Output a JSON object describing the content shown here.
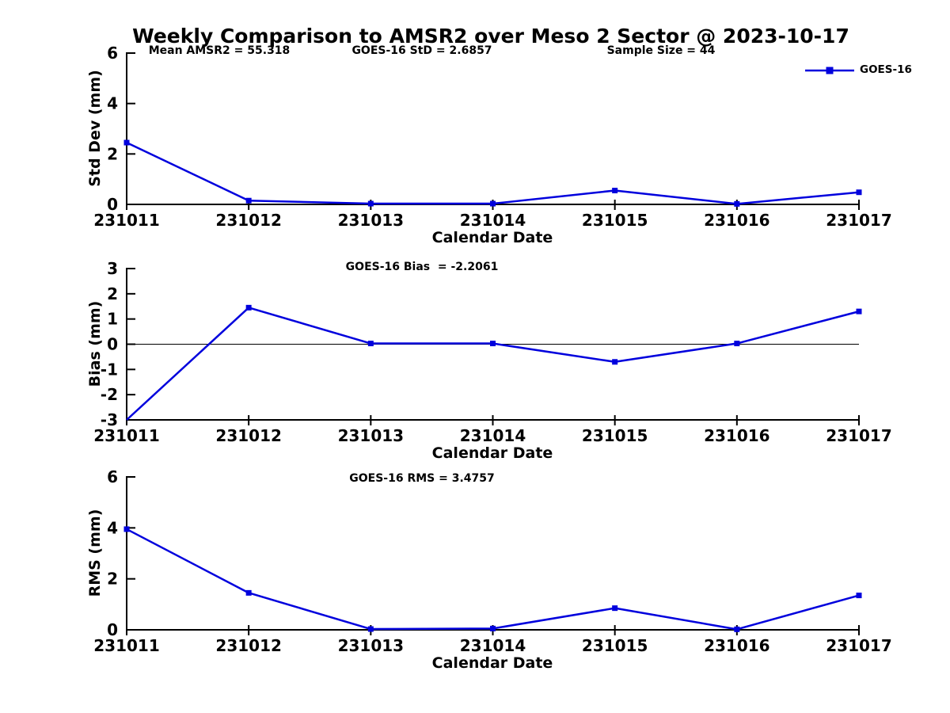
{
  "title": "Weekly Comparison to AMSR2 over Meso 2 Sector @ 2023-10-17",
  "legend": {
    "label": "GOES-16",
    "position": "top-right"
  },
  "colors": {
    "line": "#0000dd",
    "axis": "#000000",
    "text": "#000000",
    "background": "#ffffff"
  },
  "stats": {
    "mean_amsr2": 55.318,
    "goes16_std": 2.6857,
    "sample_size": 44,
    "goes16_bias": -2.2061,
    "goes16_rms": 3.4757
  },
  "chart_data": [
    {
      "type": "line",
      "panel_id": "std-dev",
      "ylabel": "Std Dev (mm)",
      "xlabel": "Calendar Date",
      "ylim": [
        0,
        6
      ],
      "yticks": [
        0,
        2,
        4,
        6
      ],
      "grid": false,
      "categories": [
        "231011",
        "231012",
        "231013",
        "231014",
        "231015",
        "231016",
        "231017"
      ],
      "series": [
        {
          "name": "GOES-16",
          "values": [
            2.45,
            0.15,
            0.03,
            0.03,
            0.55,
            0.02,
            0.48
          ]
        }
      ],
      "annotations": [
        {
          "text": "Mean AMSR2 = 55.318"
        },
        {
          "text": "GOES-16 StD = 2.6857"
        },
        {
          "text": "Sample Size = 44"
        }
      ],
      "zero_line": false,
      "legend": true
    },
    {
      "type": "line",
      "panel_id": "bias",
      "ylabel": "Bias (mm)",
      "xlabel": "Calendar Date",
      "ylim": [
        -3,
        3
      ],
      "yticks": [
        3,
        2,
        1,
        0,
        -1,
        -2,
        -3
      ],
      "grid": false,
      "categories": [
        "231011",
        "231012",
        "231013",
        "231014",
        "231015",
        "231016",
        "231017"
      ],
      "series": [
        {
          "name": "GOES-16",
          "values": [
            -3.0,
            1.45,
            0.03,
            0.03,
            -0.7,
            0.03,
            1.3
          ]
        }
      ],
      "annotations": [
        {
          "text": "GOES-16 Bias  = -2.2061"
        }
      ],
      "zero_line": true,
      "legend": false
    },
    {
      "type": "line",
      "panel_id": "rms",
      "ylabel": "RMS (mm)",
      "xlabel": "Calendar Date",
      "ylim": [
        0,
        6
      ],
      "yticks": [
        0,
        2,
        4,
        6
      ],
      "grid": false,
      "categories": [
        "231011",
        "231012",
        "231013",
        "231014",
        "231015",
        "231016",
        "231017"
      ],
      "series": [
        {
          "name": "GOES-16",
          "values": [
            3.95,
            1.45,
            0.03,
            0.05,
            0.85,
            0.02,
            1.35
          ]
        }
      ],
      "annotations": [
        {
          "text": "GOES-16 RMS = 3.4757"
        }
      ],
      "zero_line": false,
      "legend": false
    }
  ]
}
